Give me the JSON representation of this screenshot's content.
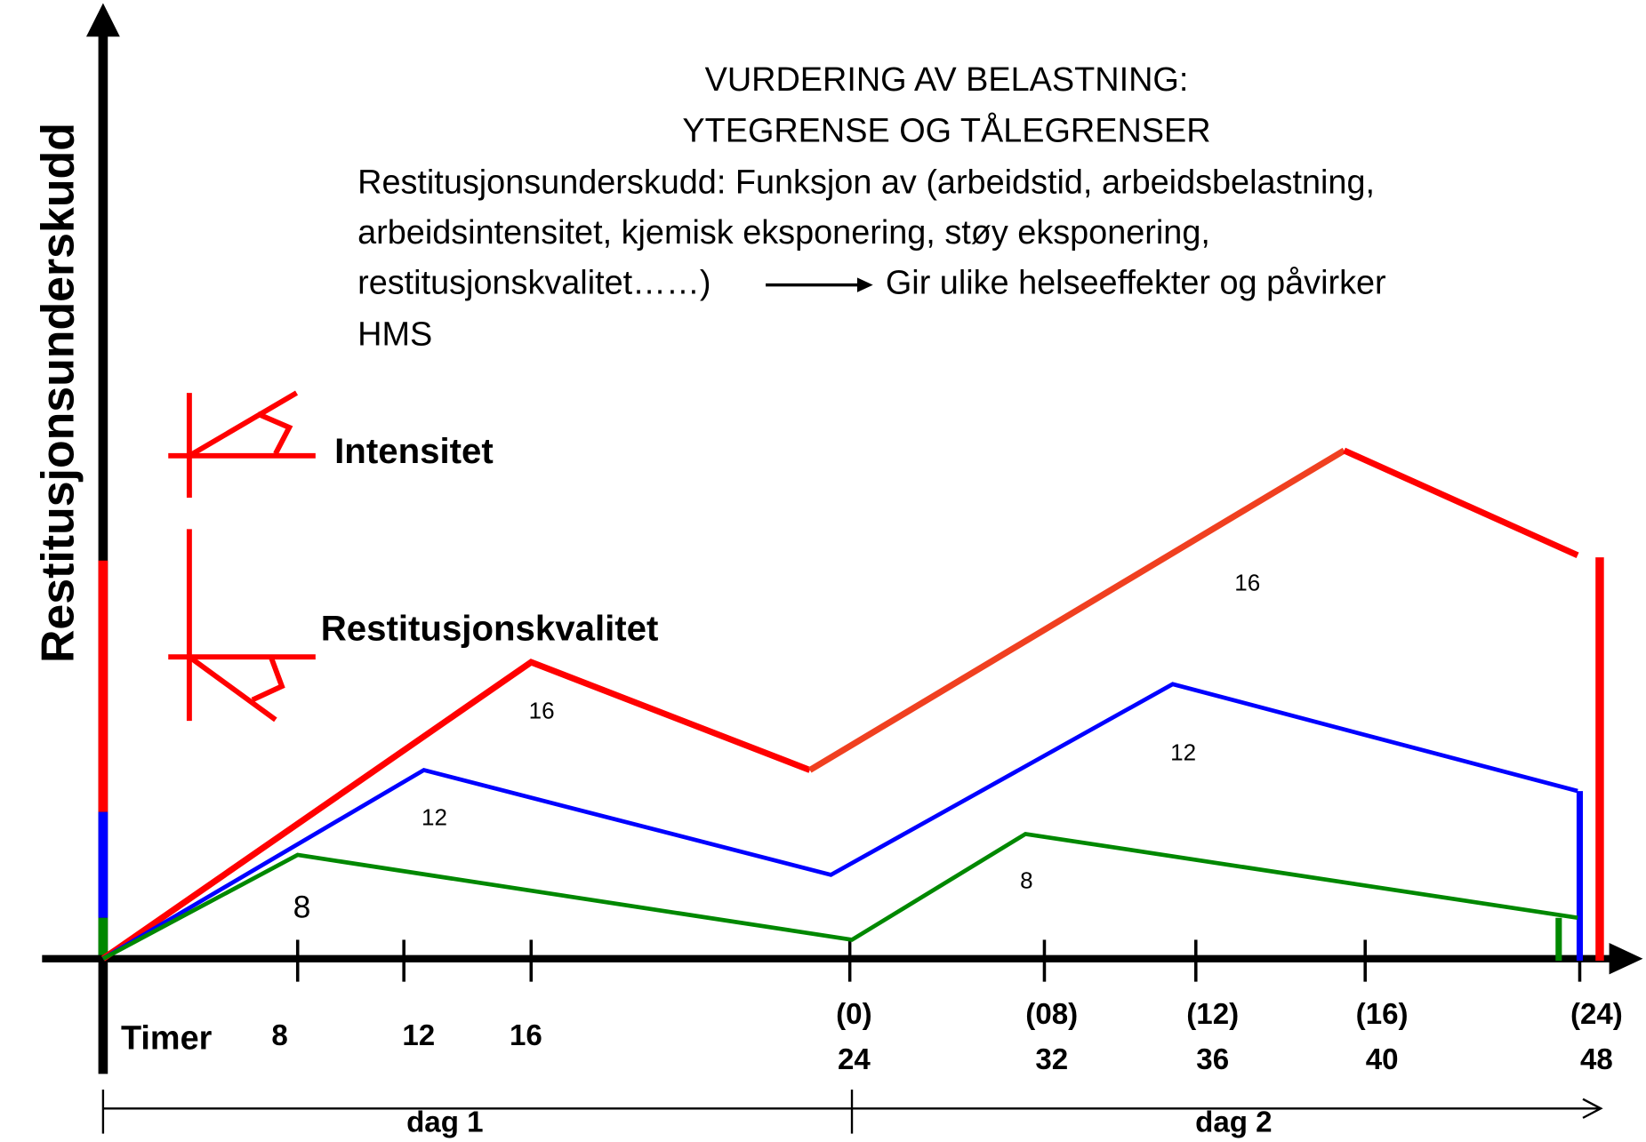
{
  "y_label": "Restitusjonsunderskudd",
  "title": [
    "VURDERING AV BELASTNING:",
    "YTEGRENSE OG TÅLEGRENSER"
  ],
  "description": [
    "Restitusjonsunderskudd: Funksjon av (arbeidstid, arbeidsbelastning,",
    "arbeidsintensitet, kjemisk eksponering, støy eksponering,",
    "restitusjonskvalitet……)",
    "Gir ulike helseeffekter og påvirker",
    "HMS"
  ],
  "legend": [
    "Intensitet",
    "Restitusjonskvalitet"
  ],
  "curve_labels": {
    "red": [
      "16",
      "16"
    ],
    "blue": [
      "12",
      "12"
    ],
    "green": [
      "8",
      "8"
    ]
  },
  "x_axis": {
    "label": "Timer",
    "ticks_day1": [
      "8",
      "12",
      "16"
    ],
    "ticks_day2": [
      [
        "(0)",
        "24"
      ],
      [
        "(08)",
        "32"
      ],
      [
        "(12)",
        "36"
      ],
      [
        "(16)",
        "40"
      ],
      [
        "(24)",
        "48"
      ]
    ]
  },
  "days": [
    "dag 1",
    "dag 2"
  ]
}
